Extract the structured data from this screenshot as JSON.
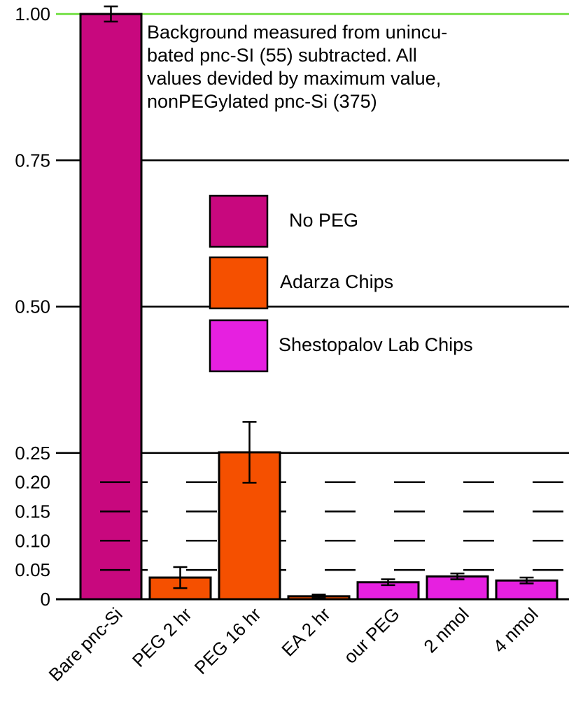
{
  "chart_data": {
    "type": "bar",
    "title": "",
    "xlabel": "",
    "ylabel": "",
    "ylim": [
      0,
      1.0
    ],
    "yticks": [
      "0",
      "0.05",
      "0.10",
      "0.15",
      "0.20",
      "0.25",
      "0.50",
      "0.75",
      "1.00"
    ],
    "ytick_values": [
      0,
      0.05,
      0.1,
      0.15,
      0.2,
      0.25,
      0.5,
      0.75,
      1.0
    ],
    "solid_gridlines": [
      0.25,
      0.5,
      0.75,
      1.0
    ],
    "dashed_gridlines": [
      0.05,
      0.1,
      0.15,
      0.2
    ],
    "categories": [
      "Bare pnc-Si",
      "PEG 2 hr",
      "PEG 16 hr",
      "EA 2 hr",
      "our PEG",
      "2 nmol",
      "4 nmol"
    ],
    "values": [
      1.0,
      0.037,
      0.251,
      0.005,
      0.029,
      0.039,
      0.032
    ],
    "errors": [
      0.013,
      0.018,
      0.052,
      0.003,
      0.005,
      0.005,
      0.005
    ],
    "groups": [
      "No PEG",
      "Adarza Chips",
      "Adarza Chips",
      "Adarza Chips",
      "Shestopalov Lab Chips",
      "Shestopalov Lab Chips",
      "Shestopalov Lab Chips"
    ],
    "legend": [
      {
        "label": "No PEG",
        "color": "#C8087E"
      },
      {
        "label": "Adarza Chips",
        "color": "#F55000"
      },
      {
        "label": "Shestopalov Lab Chips",
        "color": "#E620E0"
      }
    ],
    "legend_placement": "center",
    "annotation": [
      "Background measured from unincu-",
      "bated pnc-SI (55) subtracted. All",
      "values devided by maximum value,",
      "nonPEGylated pnc-Si (375)"
    ],
    "top_line_color": "#66DD33"
  }
}
